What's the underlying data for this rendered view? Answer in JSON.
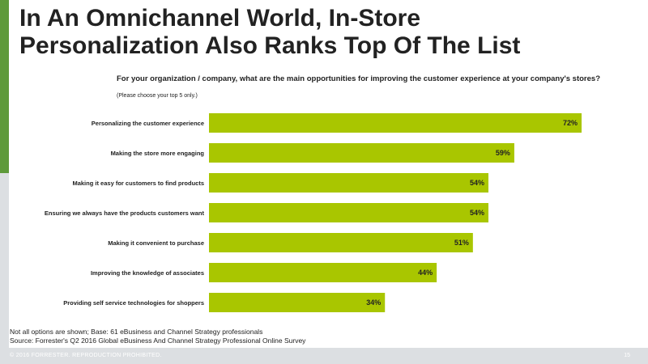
{
  "slide": {
    "title_line1": "In An Omnichannel World, In-Store",
    "title_line2": "Personalization Also Ranks Top Of The List",
    "question": "For your organization / company, what are the main opportunities for improving the customer experience at your company's stores?",
    "instruction": "(Please choose your top 5 only.)",
    "footnote_line1": "Not all options are shown; Base: 61 eBusiness and Channel Strategy professionals",
    "footnote_line2": "Source: Forrester's Q2 2016 Global eBusiness And Channel Strategy Professional Online Survey",
    "copyright": "© 2016 FORRESTER. REPRODUCTION PROHIBITED.",
    "page_number": "15"
  },
  "colors": {
    "bar": "#a9c600",
    "accent": "#5e9a3a",
    "footer": "#dcdfe2"
  },
  "chart_data": {
    "type": "bar",
    "orientation": "horizontal",
    "categories": [
      "Personalizing the customer experience",
      "Making the store more engaging",
      "Making it easy for customers to find products",
      "Ensuring we always have the products customers want",
      "Making it convenient to purchase",
      "Improving the knowledge of associates",
      "Providing self service technologies for shoppers"
    ],
    "values": [
      72,
      59,
      54,
      54,
      51,
      44,
      34
    ],
    "value_labels": [
      "72%",
      "59%",
      "54%",
      "54%",
      "51%",
      "44%",
      "34%"
    ],
    "xlim": [
      0,
      80
    ],
    "unit": "%",
    "grid": false,
    "legend": "none"
  }
}
